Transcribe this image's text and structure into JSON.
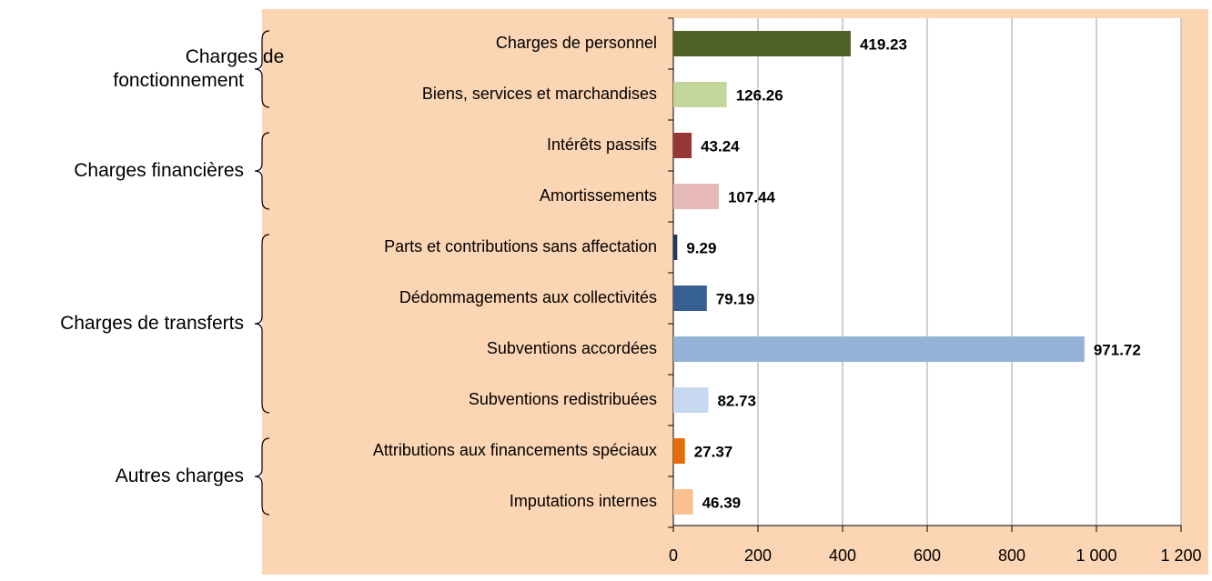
{
  "chart_data": {
    "type": "bar",
    "orientation": "horizontal",
    "groups": [
      {
        "label": [
          "Charges de",
          "fonctionnement"
        ],
        "categories": [
          "Charges de personnel",
          "Biens, services et marchandises"
        ],
        "values": [
          419.23,
          126.26
        ],
        "colors": [
          "#4f6228",
          "#c3d69b"
        ]
      },
      {
        "label": [
          "Charges financières"
        ],
        "categories": [
          "Intérêts passifs",
          "Amortissements"
        ],
        "values": [
          43.24,
          107.44
        ],
        "colors": [
          "#953735",
          "#e6b9b8"
        ]
      },
      {
        "label": [
          "Charges de transferts"
        ],
        "categories": [
          "Parts et contributions sans affectation",
          "Dédommagements aux collectivités",
          "Subventions accordées",
          "Subventions redistribuées"
        ],
        "values": [
          9.29,
          79.19,
          971.72,
          82.73
        ],
        "colors": [
          "#1f3864",
          "#366092",
          "#95b3d7",
          "#c6d9f1"
        ]
      },
      {
        "label": [
          "Autres charges"
        ],
        "categories": [
          "Attributions aux financements spéciaux",
          "Imputations internes"
        ],
        "values": [
          27.37,
          46.39
        ],
        "colors": [
          "#e46c0a",
          "#fac090"
        ]
      }
    ],
    "xlim": [
      0,
      1200
    ],
    "xticks": [
      0,
      200,
      400,
      600,
      800,
      {
        "value": 1000,
        "label": "1 000"
      },
      {
        "value": 1200,
        "label": "1 200"
      }
    ],
    "grid": true
  }
}
